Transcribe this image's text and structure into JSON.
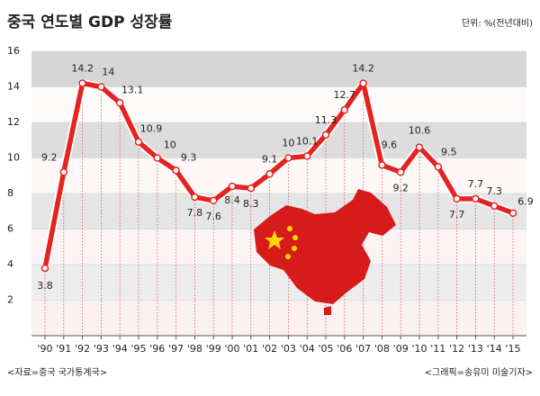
{
  "chart_data": {
    "type": "line",
    "title": "중국 연도별 GDP 성장률",
    "unit_note": "단위: %(전년대비)",
    "source": "<자료=중국 국가통계국>",
    "credit": "<그래픽=송유미 미술기자>",
    "categories": [
      "'90",
      "'91",
      "'92",
      "'93",
      "'94",
      "'95",
      "'96",
      "'97",
      "'98",
      "'99",
      "'00",
      "'01",
      "'02",
      "'03",
      "'04",
      "'05",
      "'06",
      "'07",
      "'08",
      "'09",
      "'10",
      "'11",
      "'12",
      "'13",
      "'14",
      "'15"
    ],
    "values": [
      3.8,
      9.2,
      14.2,
      14,
      13.1,
      10.9,
      10,
      9.3,
      7.8,
      7.6,
      8.4,
      8.3,
      9.1,
      10,
      10.1,
      11.3,
      12.7,
      14.2,
      9.6,
      9.2,
      10.6,
      9.5,
      7.7,
      7.7,
      7.3,
      6.9
    ],
    "color": "#e52421",
    "ylim": [
      0,
      16
    ],
    "yticks": [
      2,
      4,
      6,
      8,
      10,
      12,
      14,
      16
    ]
  }
}
